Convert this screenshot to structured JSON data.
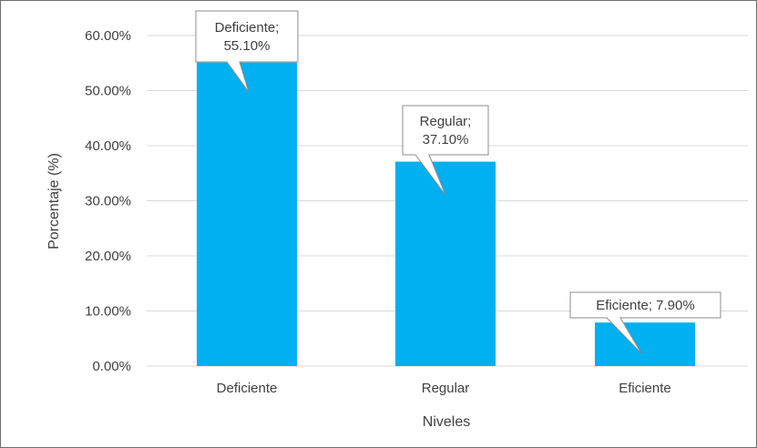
{
  "chart_data": {
    "type": "bar",
    "title": "",
    "xlabel": "Niveles",
    "ylabel": "Porcentaje (%)",
    "categories": [
      "Deficiente",
      "Regular",
      "Eficiente"
    ],
    "values": [
      55.1,
      37.1,
      7.9
    ],
    "data_labels": [
      [
        "Deficiente;",
        "55.10%"
      ],
      [
        "Regular;",
        "37.10%"
      ],
      [
        "Eficiente; 7.90%"
      ]
    ],
    "ylim": [
      0,
      60
    ],
    "yticks": [
      0,
      10,
      20,
      30,
      40,
      50,
      60
    ],
    "ytick_labels": [
      "0.00%",
      "10.00%",
      "20.00%",
      "30.00%",
      "40.00%",
      "50.00%",
      "60.00%"
    ],
    "grid": true,
    "legend": "none",
    "bar_color": "#00b0f0",
    "grid_color": "#d9d9d9",
    "text_color": "#404040"
  }
}
